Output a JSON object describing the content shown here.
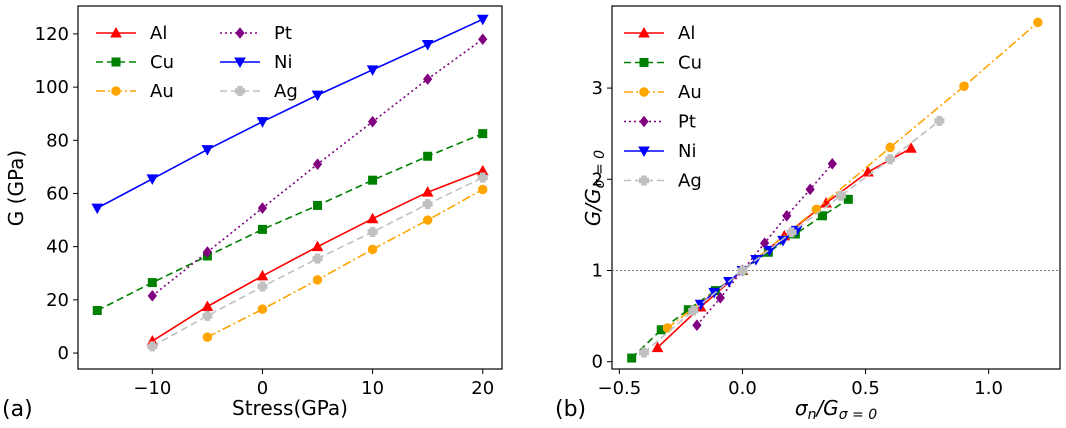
{
  "chart_data": [
    {
      "id": "a",
      "type": "line",
      "panel_label": "(a)",
      "xlabel": "Stress(GPa)",
      "ylabel": "G (GPa)",
      "xlim": [
        -16.75,
        21.75
      ],
      "ylim": [
        -6.0,
        130.5
      ],
      "xticks": [
        -10,
        0,
        10,
        20
      ],
      "yticks": [
        0,
        20,
        40,
        60,
        80,
        100,
        120
      ],
      "xtick_labels": [
        "−10",
        "0",
        "10",
        "20"
      ],
      "ytick_labels": [
        "0",
        "20",
        "40",
        "60",
        "80",
        "100",
        "120"
      ],
      "legend_cols": 2,
      "series": [
        {
          "name": "Al",
          "color": "#ff0000",
          "dash": "",
          "marker": "triangle-up",
          "x": [
            -10,
            -5,
            0,
            5,
            10,
            15,
            20
          ],
          "y": [
            4.5,
            17.5,
            29,
            40,
            50.5,
            60.5,
            68.5
          ]
        },
        {
          "name": "Cu",
          "color": "#008000",
          "dash": "7,4",
          "marker": "square",
          "x": [
            -15,
            -10,
            -5,
            0,
            5,
            10,
            15,
            20
          ],
          "y": [
            16,
            26.5,
            36.5,
            46.5,
            55.5,
            65,
            74,
            82.5
          ]
        },
        {
          "name": "Au",
          "color": "#ffa500",
          "dash": "9,3,2,3",
          "marker": "circle",
          "x": [
            -5,
            0,
            5,
            10,
            15,
            20
          ],
          "y": [
            6,
            16.5,
            27.5,
            39,
            50,
            61.5
          ]
        },
        {
          "name": "Pt",
          "color": "#800080",
          "dash": "2,3",
          "marker": "diamond",
          "x": [
            -10,
            -5,
            0,
            5,
            10,
            15,
            20
          ],
          "y": [
            21.5,
            38,
            54.5,
            71,
            87,
            103,
            118
          ]
        },
        {
          "name": "Ni",
          "color": "#0000ff",
          "dash": "",
          "marker": "triangle-down",
          "x": [
            -15,
            -10,
            -5,
            0,
            5,
            10,
            15,
            20
          ],
          "y": [
            54.5,
            65.5,
            76.5,
            87,
            97,
            106.5,
            116,
            125.5
          ]
        },
        {
          "name": "Ag",
          "color": "#c0c0c0",
          "dash": "7,4",
          "marker": "plus",
          "x": [
            -10,
            -5,
            0,
            5,
            10,
            15,
            20
          ],
          "y": [
            2.5,
            14,
            25,
            35.5,
            45.5,
            56,
            66
          ]
        }
      ]
    },
    {
      "id": "b",
      "type": "line",
      "panel_label": "(b)",
      "xlabel": "σn/Gσ = 0",
      "ylabel": "G/Gσ = 0",
      "xlim": [
        -0.53,
        1.29
      ],
      "ylim": [
        -0.08,
        3.9
      ],
      "xticks": [
        -0.5,
        0.0,
        0.5,
        1.0
      ],
      "yticks": [
        0,
        1,
        2,
        3
      ],
      "xtick_labels": [
        "−0.5",
        "0.0",
        "0.5",
        "1.0"
      ],
      "ytick_labels": [
        "0",
        "1",
        "2",
        "3"
      ],
      "legend_cols": 1,
      "reference_line": {
        "y": 1,
        "color": "#808080"
      },
      "series": [
        {
          "name": "Al",
          "color": "#ff0000",
          "dash": "",
          "marker": "triangle-up",
          "x": [
            -0.345,
            -0.17,
            0.0,
            0.17,
            0.34,
            0.51,
            0.685
          ],
          "y": [
            0.155,
            0.6,
            1.0,
            1.38,
            1.74,
            2.08,
            2.34
          ]
        },
        {
          "name": "Cu",
          "color": "#008000",
          "dash": "7,4",
          "marker": "square",
          "x": [
            -0.45,
            -0.33,
            -0.22,
            -0.11,
            0.0,
            0.105,
            0.215,
            0.325,
            0.43
          ],
          "y": [
            0.04,
            0.35,
            0.57,
            0.78,
            1.0,
            1.2,
            1.4,
            1.6,
            1.78
          ]
        },
        {
          "name": "Au",
          "color": "#ffa500",
          "dash": "9,3,2,3",
          "marker": "circle",
          "x": [
            -0.305,
            0.0,
            0.3,
            0.6,
            0.9,
            1.2
          ],
          "y": [
            0.37,
            1.0,
            1.67,
            2.35,
            3.02,
            3.72
          ]
        },
        {
          "name": "Pt",
          "color": "#800080",
          "dash": "2,3",
          "marker": "diamond",
          "x": [
            -0.185,
            -0.09,
            0.0,
            0.09,
            0.18,
            0.275,
            0.365
          ],
          "y": [
            0.4,
            0.7,
            1.0,
            1.3,
            1.6,
            1.89,
            2.17
          ]
        },
        {
          "name": "Ni",
          "color": "#0000ff",
          "dash": "",
          "marker": "triangle-down",
          "x": [
            -0.17,
            -0.115,
            -0.055,
            0.0,
            0.055,
            0.11,
            0.165,
            0.22
          ],
          "y": [
            0.63,
            0.76,
            0.88,
            1.0,
            1.12,
            1.22,
            1.33,
            1.44
          ]
        },
        {
          "name": "Ag",
          "color": "#c0c0c0",
          "dash": "7,4",
          "marker": "plus",
          "x": [
            -0.4,
            -0.2,
            0.0,
            0.2,
            0.4,
            0.6,
            0.8
          ],
          "y": [
            0.1,
            0.56,
            1.0,
            1.42,
            1.82,
            2.22,
            2.64
          ]
        }
      ]
    }
  ]
}
